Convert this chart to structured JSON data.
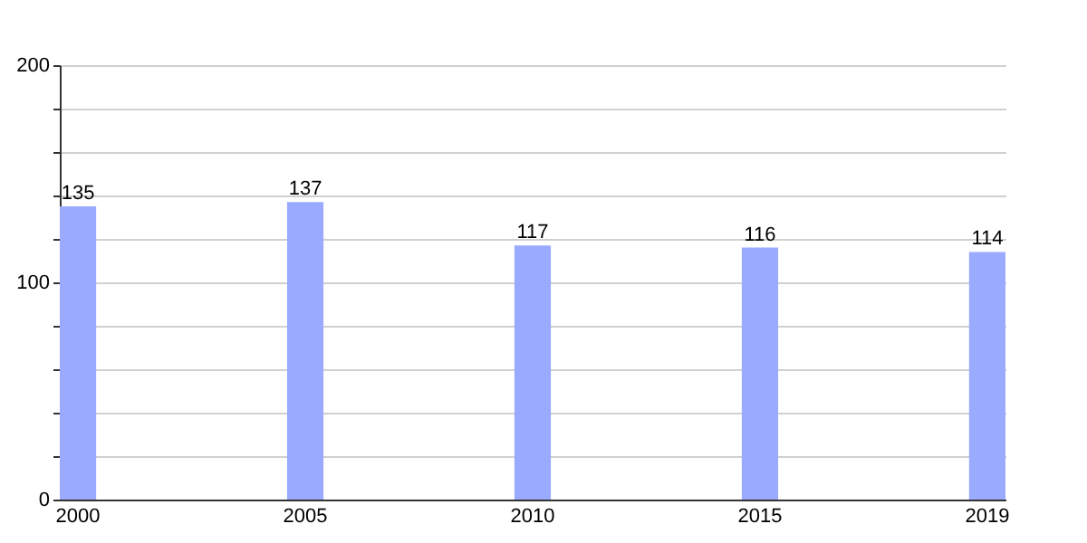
{
  "chart_data": {
    "type": "bar",
    "categories": [
      "2000",
      "2005",
      "2010",
      "2015",
      "2019"
    ],
    "values": [
      135,
      137,
      117,
      116,
      114
    ],
    "color": "#99aaff",
    "ylim": [
      0,
      200
    ],
    "yticks": [
      0,
      {
        "value": 20,
        "label": null
      },
      {
        "value": 40,
        "label": null
      },
      {
        "value": 60,
        "label": null
      },
      {
        "value": 80,
        "label": null
      },
      100,
      {
        "value": 120,
        "label": null
      },
      {
        "value": 140,
        "label": null
      },
      {
        "value": 160,
        "label": null
      },
      {
        "value": 180,
        "label": null
      },
      200
    ],
    "grid": true,
    "data_labels": true
  }
}
